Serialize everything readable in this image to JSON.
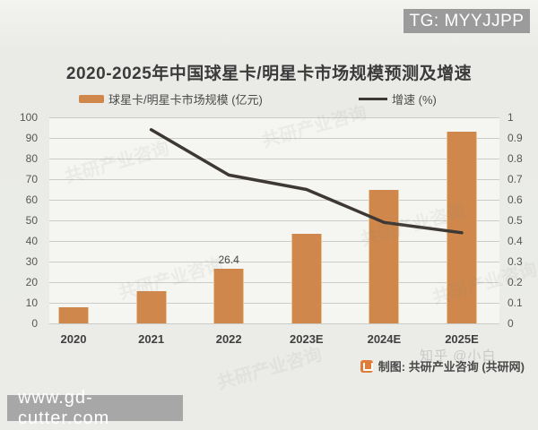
{
  "overlays": {
    "tg_badge": "TG: MYYJJPP",
    "site_badge": "www.gd-cutter.com",
    "zhihu_watermark": "知乎 @小白",
    "diagonal_watermark": "共研产业咨询"
  },
  "source": {
    "label": "制图: 共研产业咨询 (共研网)"
  },
  "chart_data": {
    "type": "bar",
    "subtype": "bar+line combo",
    "title": "2020-2025年中国球星卡/明星卡市场规模预测及增速",
    "categories": [
      "2020",
      "2021",
      "2022",
      "2023E",
      "2024E",
      "2025E"
    ],
    "series": [
      {
        "name": "球星卡/明星卡市场规模 (亿元)",
        "type": "bar",
        "axis": "left",
        "values": [
          8,
          15.5,
          26.4,
          43.5,
          65,
          93
        ],
        "color": "#cf874c"
      },
      {
        "name": "增速 (%)",
        "type": "line",
        "axis": "right",
        "values": [
          null,
          0.94,
          0.72,
          0.65,
          0.49,
          0.44
        ],
        "color": "#3e3834"
      }
    ],
    "data_labels": {
      "2": "26.4"
    },
    "left_axis": {
      "min": 0,
      "max": 100,
      "ticks": [
        "100",
        "90",
        "80",
        "70",
        "60",
        "50",
        "40",
        "30",
        "20",
        "10",
        "0"
      ]
    },
    "right_axis": {
      "min": 0,
      "max": 1,
      "ticks": [
        "1",
        "0.9",
        "0.8",
        "0.7",
        "0.6",
        "0.5",
        "0.4",
        "0.3",
        "0.2",
        "0.1",
        "0"
      ]
    },
    "legend": [
      {
        "label": "球星卡/明星卡市场规模 (亿元)",
        "swatch": "bar"
      },
      {
        "label": "增速 (%)",
        "swatch": "line"
      }
    ],
    "grid": true,
    "legend_position": "top"
  }
}
